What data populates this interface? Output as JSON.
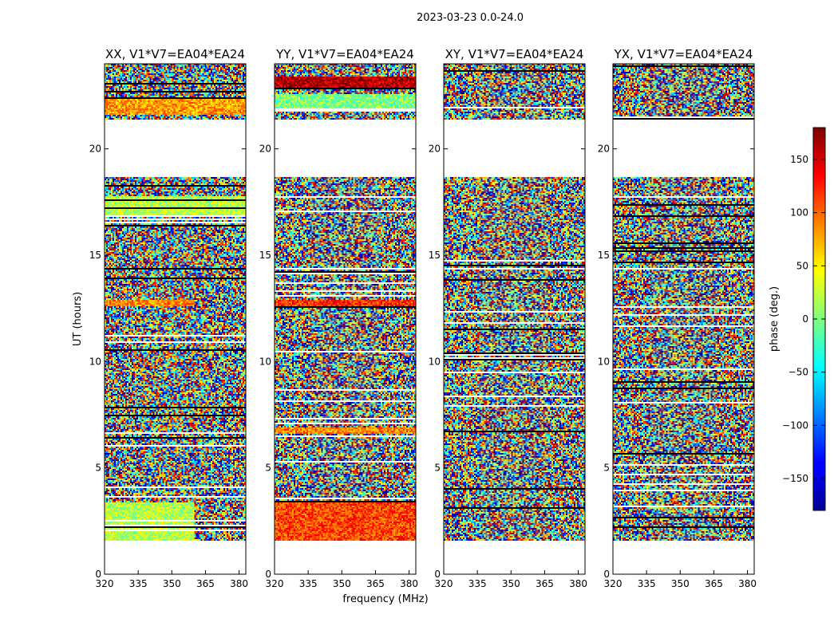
{
  "suptitle": "2023-03-23 0.0-24.0",
  "chart_data": {
    "type": "heatmap",
    "x_ticks": [
      320,
      335,
      350,
      365,
      380
    ],
    "xlim": [
      320,
      383
    ],
    "xlabel": "frequency (MHz)",
    "y_ticks": [
      0,
      5,
      10,
      15,
      20
    ],
    "ylim": [
      0,
      24
    ],
    "ylabel": "UT (hours)",
    "colorbar": {
      "label": "phase (deg.)",
      "ticks": [
        150,
        100,
        50,
        0,
        -50,
        -100,
        -150
      ],
      "tick_labels": [
        "150",
        "100",
        "50",
        "0",
        "−50",
        "−100",
        "−150"
      ],
      "range": [
        -180,
        180
      ],
      "colormap": "jet"
    },
    "panels": [
      {
        "title": "XX, V1*V7=EA04*EA24",
        "polarization": "XX",
        "coherent_bands": [
          {
            "ut": [
              1.6,
              3.4
            ],
            "freq": [
              320,
              360
            ],
            "phase": 20
          },
          {
            "ut": [
              12.6,
              12.9
            ],
            "freq": [
              320,
              360
            ],
            "phase": 90
          },
          {
            "ut": [
              21.6,
              22.4
            ],
            "freq": [
              320,
              383
            ],
            "phase": 80
          },
          {
            "ut": [
              16.8,
              17.8
            ],
            "freq": [
              320,
              383
            ],
            "phase": 20
          }
        ]
      },
      {
        "title": "YY, V1*V7=EA04*EA24",
        "polarization": "YY",
        "coherent_bands": [
          {
            "ut": [
              1.6,
              3.4
            ],
            "freq": [
              320,
              383
            ],
            "phase": 110
          },
          {
            "ut": [
              12.6,
              12.9
            ],
            "freq": [
              320,
              383
            ],
            "phase": 120
          },
          {
            "ut": [
              6.6,
              6.9
            ],
            "freq": [
              320,
              383
            ],
            "phase": 90
          },
          {
            "ut": [
              22.8,
              23.4
            ],
            "freq": [
              320,
              383
            ],
            "phase": 160
          },
          {
            "ut": [
              21.8,
              22.6
            ],
            "freq": [
              320,
              383
            ],
            "phase": 0
          }
        ]
      },
      {
        "title": "XY, V1*V7=EA04*EA24",
        "polarization": "XY",
        "coherent_bands": []
      },
      {
        "title": "YX, V1*V7=EA04*EA24",
        "polarization": "YX",
        "coherent_bands": []
      }
    ],
    "flagged_ut_ranges": [
      [
        0,
        1.55
      ],
      [
        18.7,
        21.4
      ]
    ],
    "grid": false
  }
}
